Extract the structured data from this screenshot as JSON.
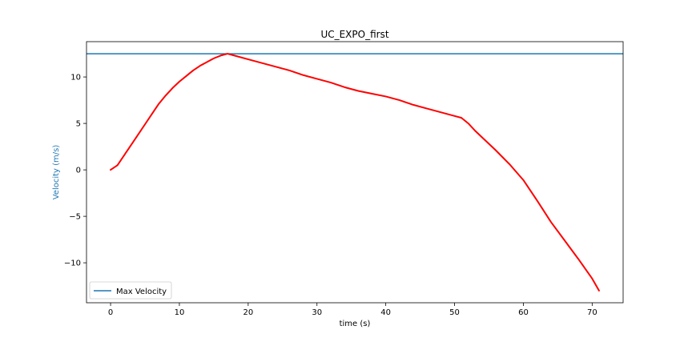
{
  "chart_data": {
    "type": "line",
    "title": "UC_EXPO_first",
    "xlabel": "time (s)",
    "ylabel": "Velocity (m/s)",
    "xlim": [
      -3.5,
      74.5
    ],
    "ylim": [
      -14.3,
      13.8
    ],
    "xticks": [
      0,
      10,
      20,
      30,
      40,
      50,
      60,
      70
    ],
    "yticks": [
      -10,
      -5,
      0,
      5,
      10
    ],
    "ytick_labels": [
      "−10",
      "−5",
      "0",
      "5",
      "10"
    ],
    "grid": false,
    "legend_position": "lower-left",
    "hline": {
      "name": "Max Velocity",
      "y": 12.5,
      "color": "#1f77b4"
    },
    "series": [
      {
        "color": "#ff0000",
        "x": [
          0,
          1,
          2,
          3,
          4,
          5,
          6,
          7,
          8,
          9,
          10,
          11,
          12,
          13,
          14,
          15,
          16,
          17,
          18,
          20,
          22,
          24,
          26,
          28,
          30,
          32,
          34,
          36,
          38,
          40,
          42,
          44,
          46,
          48,
          50,
          51,
          52,
          53,
          54,
          56,
          58,
          60,
          62,
          64,
          66,
          68,
          70,
          71
        ],
        "y": [
          0,
          0.5,
          1.6,
          2.7,
          3.8,
          4.9,
          6.0,
          7.1,
          8.0,
          8.8,
          9.5,
          10.1,
          10.7,
          11.2,
          11.6,
          12.0,
          12.3,
          12.5,
          12.3,
          11.9,
          11.5,
          11.1,
          10.7,
          10.2,
          9.8,
          9.4,
          8.9,
          8.5,
          8.2,
          7.9,
          7.5,
          7.0,
          6.6,
          6.2,
          5.8,
          5.6,
          5.0,
          4.2,
          3.5,
          2.1,
          0.6,
          -1.1,
          -3.3,
          -5.6,
          -7.6,
          -9.6,
          -11.7,
          -13.0
        ]
      }
    ]
  }
}
